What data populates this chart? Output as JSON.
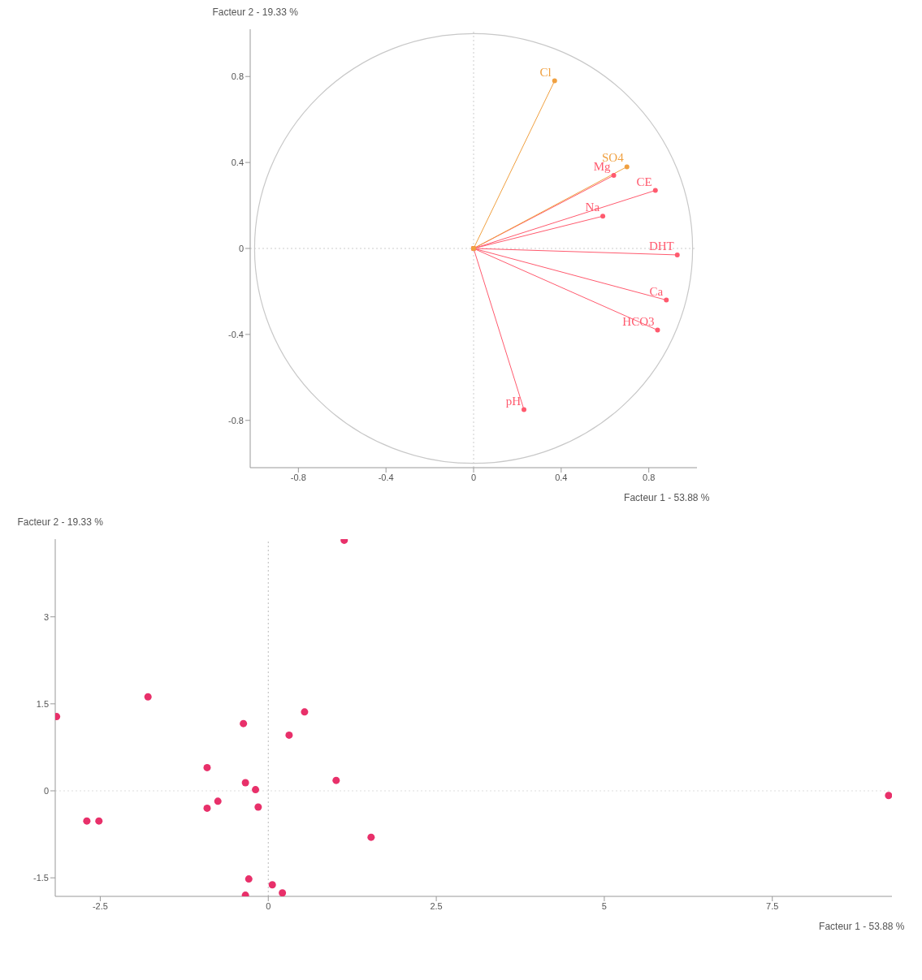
{
  "chart_data": [
    {
      "type": "line",
      "xlabel": "Facteur 1 - 53.88 %",
      "ylabel": "Facteur 2 - 19.33 %",
      "xlim": [
        -1.02,
        1.02
      ],
      "ylim": [
        -1.02,
        1.02
      ],
      "xticks": [
        -0.8,
        -0.4,
        0,
        0.4,
        0.8
      ],
      "yticks": [
        -0.8,
        -0.4,
        0,
        0.4,
        0.8
      ],
      "marker": "circle",
      "line_style": "solid",
      "ref_lines": [
        {
          "axis": "x",
          "value": 0,
          "color": "#cccccc",
          "line_style": "dotted"
        },
        {
          "axis": "y",
          "value": 0,
          "color": "#cccccc",
          "line_style": "dotted"
        }
      ],
      "series": [
        {
          "name": "pH",
          "color": "#ff5a6e",
          "x": [
            0,
            0.23
          ],
          "values": [
            0,
            -0.75
          ]
        },
        {
          "name": "HCO3",
          "color": "#ff5a6e",
          "x": [
            0,
            0.84
          ],
          "values": [
            0,
            -0.38
          ]
        },
        {
          "name": "Ca",
          "color": "#ff5a6e",
          "x": [
            0,
            0.88
          ],
          "values": [
            0,
            -0.24
          ]
        },
        {
          "name": "DHT",
          "color": "#ff5a6e",
          "x": [
            0,
            0.93
          ],
          "values": [
            0,
            -0.03
          ]
        },
        {
          "name": "Na",
          "color": "#ff5a6e",
          "x": [
            0,
            0.59
          ],
          "values": [
            0,
            0.15
          ]
        },
        {
          "name": "CE",
          "color": "#ff5a6e",
          "x": [
            0,
            0.83
          ],
          "values": [
            0,
            0.27
          ]
        },
        {
          "name": "Mg",
          "color": "#ff5a6e",
          "x": [
            0,
            0.64
          ],
          "values": [
            0,
            0.34
          ]
        },
        {
          "name": "SO4",
          "color": "#f0a040",
          "x": [
            0,
            0.7
          ],
          "values": [
            0,
            0.38
          ]
        },
        {
          "name": "Cl",
          "color": "#f0a040",
          "x": [
            0,
            0.37
          ],
          "values": [
            0,
            0.78
          ]
        }
      ]
    },
    {
      "type": "scatter",
      "xlabel": "Facteur 1 - 53.88 %",
      "ylabel": "Facteur 2 - 19.33 %",
      "xlim": [
        -3.17,
        9.28
      ],
      "ylim": [
        -1.82,
        4.34
      ],
      "xticks": [
        -2.5,
        0,
        2.5,
        5,
        7.5
      ],
      "yticks": [
        -1.5,
        0,
        1.5,
        3
      ],
      "marker": "circle",
      "ref_lines": [
        {
          "axis": "x",
          "value": 0,
          "color": "#bbbbbb",
          "line_style": "dotted"
        },
        {
          "axis": "y",
          "value": 0,
          "color": "#dddddd",
          "line_style": "dotted"
        }
      ],
      "series": [
        {
          "color": "#e8306a",
          "x": [
            9.23,
            1.53,
            1.01,
            0.31,
            0.54,
            1.13,
            0.21,
            0.06,
            -0.34,
            -0.29,
            -0.15,
            -0.19,
            -0.34,
            -0.75,
            -0.91,
            -0.91,
            -0.37,
            -1.79,
            -2.52,
            -2.7,
            -3.15
          ],
          "values": [
            -0.08,
            -0.8,
            0.18,
            0.96,
            1.36,
            4.32,
            -1.76,
            -1.62,
            -1.8,
            -1.52,
            -0.28,
            0.02,
            0.14,
            -0.18,
            -0.3,
            0.4,
            1.16,
            1.62,
            -0.52,
            -0.52,
            1.28
          ]
        }
      ]
    }
  ]
}
